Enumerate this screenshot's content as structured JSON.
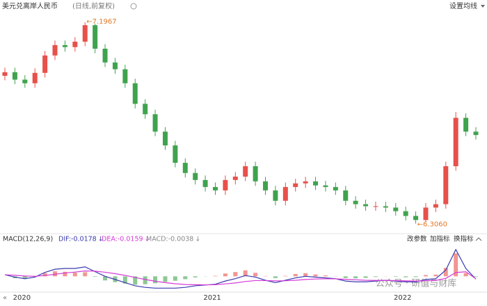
{
  "chart_data": {
    "type": "candlestick",
    "title": "美元兑离岸人民币",
    "subtitle": "(日线,前复权)",
    "toolbar": {
      "ma_settings": "设置均线",
      "edit_params": "改参数",
      "add_indicator": "加指标",
      "switch_indicator": "换指标",
      "collapse": "«"
    },
    "watermark": "公众号 · 研值与财库",
    "categories": [
      null,
      "2020",
      null,
      null,
      null,
      null,
      null,
      null,
      null,
      null,
      null,
      null,
      null,
      null,
      null,
      null,
      null,
      null,
      null,
      null,
      "2021",
      null,
      null,
      null,
      null,
      null,
      null,
      null,
      null,
      null,
      null,
      null,
      null,
      null,
      null,
      null,
      null,
      null,
      null,
      "2022",
      null,
      null,
      null,
      null,
      null,
      null,
      null,
      null
    ],
    "candles": {
      "open": [
        6.96,
        6.976,
        6.943,
        6.927,
        6.973,
        7.05,
        7.096,
        7.087,
        7.111,
        7.184,
        7.08,
        7.019,
        6.989,
        6.927,
        6.836,
        6.79,
        6.713,
        6.652,
        6.575,
        6.53,
        6.499,
        6.468,
        6.453,
        6.499,
        6.514,
        6.56,
        6.493,
        6.453,
        6.407,
        6.468,
        6.484,
        6.493,
        6.475,
        6.468,
        6.453,
        6.407,
        6.392,
        6.383,
        6.383,
        6.377,
        6.361,
        6.34,
        6.322,
        6.377,
        6.392,
        6.56,
        6.774,
        6.713
      ],
      "high": [
        6.996,
        6.996,
        6.963,
        6.993,
        7.07,
        7.116,
        7.116,
        7.131,
        7.1967,
        7.19,
        7.1,
        7.039,
        7.009,
        6.947,
        6.856,
        6.81,
        6.733,
        6.672,
        6.595,
        6.55,
        6.519,
        6.488,
        6.519,
        6.534,
        6.58,
        6.58,
        6.513,
        6.473,
        6.488,
        6.504,
        6.513,
        6.513,
        6.495,
        6.488,
        6.473,
        6.427,
        6.412,
        6.403,
        6.403,
        6.397,
        6.381,
        6.36,
        6.397,
        6.412,
        6.58,
        6.8,
        6.794,
        6.733
      ],
      "low": [
        6.94,
        6.923,
        6.907,
        6.907,
        6.953,
        7.03,
        7.067,
        7.067,
        7.091,
        7.06,
        6.999,
        6.969,
        6.907,
        6.816,
        6.77,
        6.693,
        6.632,
        6.555,
        6.51,
        6.479,
        6.448,
        6.433,
        6.433,
        6.479,
        6.494,
        6.473,
        6.433,
        6.387,
        6.387,
        6.448,
        6.464,
        6.455,
        6.448,
        6.433,
        6.387,
        6.372,
        6.363,
        6.363,
        6.357,
        6.341,
        6.32,
        6.306,
        6.312,
        6.357,
        6.372,
        6.54,
        6.693,
        6.678
      ],
      "close": [
        6.976,
        6.943,
        6.927,
        6.973,
        7.05,
        7.096,
        7.087,
        7.111,
        7.184,
        7.08,
        7.019,
        6.989,
        6.927,
        6.836,
        6.79,
        6.713,
        6.652,
        6.575,
        6.53,
        6.499,
        6.468,
        6.453,
        6.499,
        6.514,
        6.56,
        6.493,
        6.453,
        6.407,
        6.468,
        6.484,
        6.493,
        6.475,
        6.468,
        6.453,
        6.407,
        6.392,
        6.383,
        6.383,
        6.377,
        6.361,
        6.34,
        6.322,
        6.377,
        6.392,
        6.56,
        6.774,
        6.713,
        6.698
      ]
    },
    "up_color": "#e8504a",
    "down_color": "#3fa34d",
    "ylim": [
      6.28,
      7.24
    ],
    "max_label": "←7.1967",
    "min_label": "←6.3060",
    "annotation_color": "#e07a2a",
    "macd": {
      "name": "MACD(12,26,9)",
      "dif_name": "DIF:",
      "dea_name": "DEA:",
      "macd_name": "MACD:",
      "trend_arrow": "↓",
      "dif_color": "#3a3ab0",
      "dea_color": "#d63ad6",
      "ylim": [
        -0.1,
        0.2
      ],
      "dif": [
        0.01,
        -0.005,
        -0.015,
        -0.005,
        0.025,
        0.045,
        0.05,
        0.05,
        0.06,
        0.03,
        0.0,
        -0.02,
        -0.04,
        -0.06,
        -0.07,
        -0.075,
        -0.075,
        -0.075,
        -0.07,
        -0.06,
        -0.055,
        -0.05,
        -0.03,
        -0.015,
        0.005,
        -0.005,
        -0.025,
        -0.04,
        -0.025,
        -0.01,
        0.0,
        -0.005,
        -0.01,
        -0.015,
        -0.03,
        -0.035,
        -0.035,
        -0.03,
        -0.025,
        -0.03,
        -0.035,
        -0.035,
        -0.02,
        -0.015,
        0.04,
        0.17,
        0.05,
        -0.0178
      ],
      "dea": [
        0.01,
        0.007,
        0.002,
        0.0,
        0.005,
        0.013,
        0.021,
        0.027,
        0.034,
        0.033,
        0.026,
        0.017,
        0.006,
        -0.007,
        -0.02,
        -0.031,
        -0.04,
        -0.047,
        -0.052,
        -0.053,
        -0.054,
        -0.053,
        -0.048,
        -0.042,
        -0.033,
        -0.027,
        -0.027,
        -0.029,
        -0.028,
        -0.025,
        -0.02,
        -0.017,
        -0.016,
        -0.016,
        -0.019,
        -0.022,
        -0.025,
        -0.026,
        -0.026,
        -0.027,
        -0.029,
        -0.03,
        -0.028,
        -0.026,
        -0.013,
        0.024,
        0.029,
        -0.0159
      ],
      "macd": [
        0,
        -0.012,
        -0.017,
        -0.005,
        0.02,
        0.032,
        0.029,
        0.023,
        0.026,
        -0.003,
        -0.026,
        -0.037,
        -0.046,
        -0.053,
        -0.05,
        -0.044,
        -0.035,
        -0.028,
        -0.018,
        -0.007,
        -0.001,
        0.003,
        0.018,
        0.027,
        0.038,
        0.022,
        0.002,
        -0.011,
        0.003,
        0.015,
        0.02,
        0.012,
        0.006,
        0.001,
        -0.011,
        -0.013,
        -0.01,
        -0.004,
        0.001,
        -0.003,
        -0.006,
        -0.005,
        0.008,
        0.011,
        0.053,
        0.146,
        0.021,
        -0.0038
      ]
    }
  }
}
